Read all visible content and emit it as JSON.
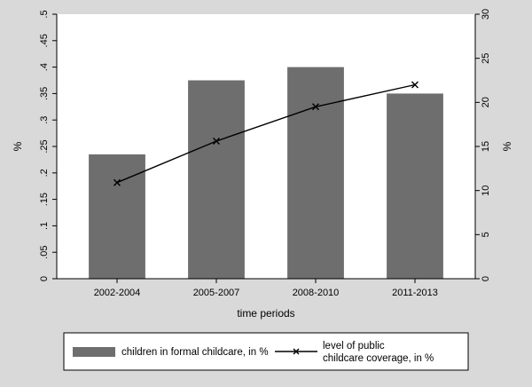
{
  "chart_data": {
    "type": "bar",
    "categories": [
      "2002-2004",
      "2005-2007",
      "2008-2010",
      "2011-2013"
    ],
    "series": [
      {
        "name": "children in formal childcare, in %",
        "kind": "bar",
        "axis": "left",
        "values": [
          0.235,
          0.375,
          0.4,
          0.35
        ],
        "color": "#6e6e6e"
      },
      {
        "name_lines": [
          "level of public",
          "childcare coverage, in %"
        ],
        "kind": "line",
        "axis": "right",
        "marker": "x",
        "values": [
          10.9,
          15.6,
          19.5,
          22.0
        ],
        "color": "#000000"
      }
    ],
    "xlabel": "time periods",
    "ylabel_left": "%",
    "ylabel_right": "%",
    "ylim_left": [
      0,
      0.5
    ],
    "yticks_left": [
      "0",
      ".05",
      ".1",
      ".15",
      ".2",
      ".25",
      ".3",
      ".35",
      ".4",
      ".45",
      ".5"
    ],
    "ylim_right": [
      0,
      30
    ],
    "yticks_right": [
      "0",
      "5",
      "10",
      "15",
      "20",
      "25",
      "30"
    ],
    "grid": false,
    "legend_position": "bottom"
  }
}
